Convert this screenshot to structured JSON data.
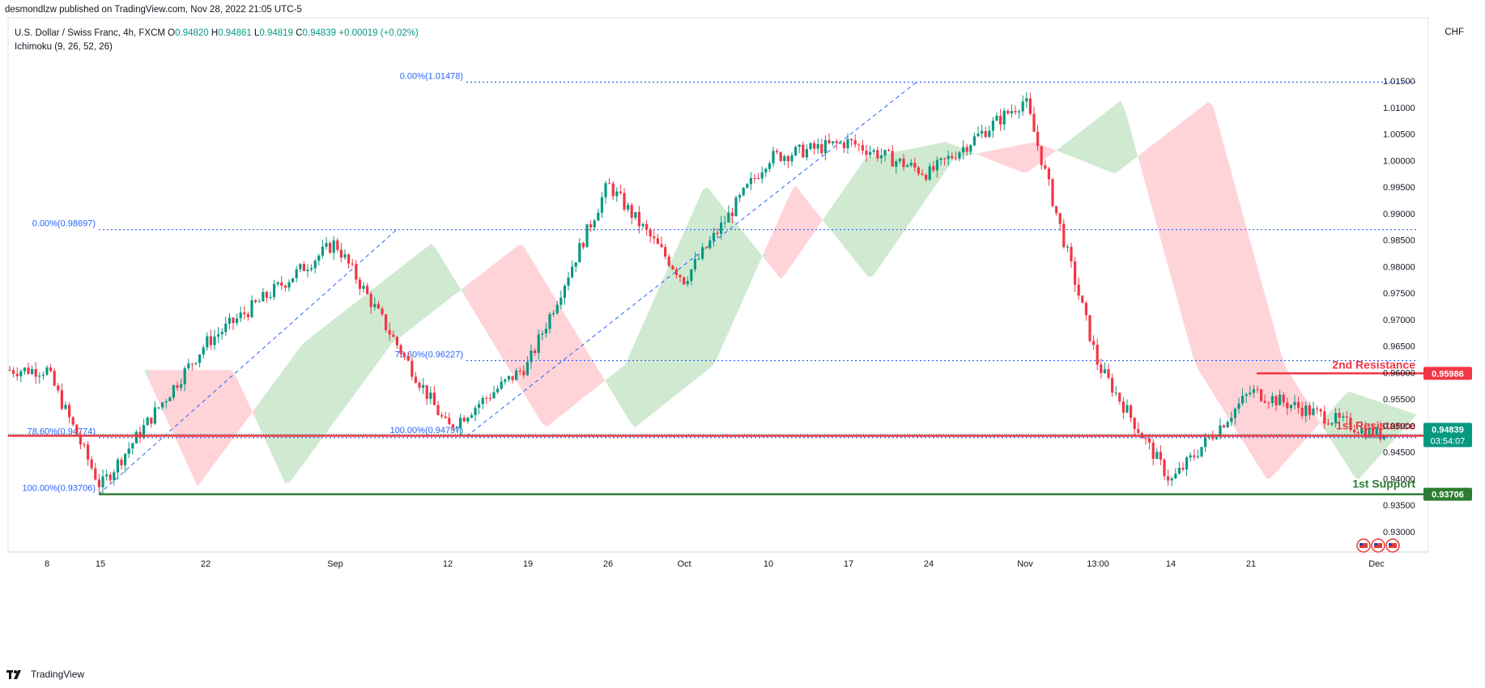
{
  "header": {
    "published": "desmondlzw published on TradingView.com, Nov 28, 2022 21:05 UTC-5",
    "symbol": "U.S. Dollar / Swiss Franc, 4h, FXCM",
    "o_label": "O",
    "o_value": "0.94820",
    "h_label": "H",
    "h_value": "0.94861",
    "l_label": "L",
    "l_value": "0.94819",
    "c_label": "C",
    "c_value": "0.94839",
    "change": "+0.00019 (+0.02%)",
    "indicator": "Ichimoku (9, 26, 52, 26)",
    "currency": "CHF"
  },
  "footer": {
    "brand": "TradingView"
  },
  "colors": {
    "up": "#089981",
    "down": "#f23645",
    "fib": "#2962ff",
    "cloud_green": "#c8e6c9",
    "cloud_red": "#ffcdd2",
    "support": "#2e7d32",
    "resistance": "#f23645",
    "current": "#089981"
  },
  "chart_data": {
    "type": "candlestick",
    "yaxis": {
      "min": 0.928,
      "max": 1.0205,
      "ticks": [
        "0.93000",
        "0.93500",
        "0.94000",
        "0.94500",
        "0.95000",
        "0.95500",
        "0.96000",
        "0.96500",
        "0.97000",
        "0.97500",
        "0.98000",
        "0.98500",
        "0.99000",
        "0.99500",
        "1.00000",
        "1.00500",
        "1.01000",
        "1.01500"
      ]
    },
    "xaxis": {
      "labels": [
        "8",
        "15",
        "22",
        "Sep",
        "12",
        "19",
        "26",
        "Oct",
        "10",
        "17",
        "24",
        "Nov",
        "13:00",
        "14",
        "21",
        "Dec"
      ]
    },
    "price_path": [
      [
        "8",
        0.9605
      ],
      [
        "15",
        0.9385
      ],
      [
        "22",
        0.9655
      ],
      [
        "Sep",
        0.9845
      ],
      [
        "12",
        0.9495
      ],
      [
        "19",
        0.9615
      ],
      [
        "26",
        0.9955
      ],
      [
        "Oct",
        0.9775
      ],
      [
        "10",
        1.0005
      ],
      [
        "17",
        1.0035
      ],
      [
        "24",
        0.9975
      ],
      [
        "Nov",
        1.0115
      ],
      [
        "13:00",
        0.9615
      ],
      [
        "14",
        0.9395
      ],
      [
        "21",
        0.9565
      ],
      [
        "Dec",
        0.9484
      ]
    ],
    "fib_levels": [
      {
        "label": "0.00%(1.01478)",
        "value": 1.01478
      },
      {
        "label": "0.00%(0.98697)",
        "value": 0.98697
      },
      {
        "label": "78.60%(0.96227)",
        "value": 0.96227
      },
      {
        "label": "100.00%(0.94797)",
        "value": 0.94797
      },
      {
        "label": "78.60%(0.94774)",
        "value": 0.94774
      },
      {
        "label": "100.00%(0.93706)",
        "value": 0.93706
      }
    ],
    "levels": [
      {
        "name": "2nd Resistance",
        "value": 0.95986,
        "label": "0.95986"
      },
      {
        "name": "1st Resistance",
        "value": 0.9481,
        "label": "0.94810"
      },
      {
        "name": "1st Support",
        "value": 0.93706,
        "label": "0.93706"
      }
    ],
    "current": {
      "value": 0.94839,
      "label": "0.94839",
      "countdown": "03:54:07"
    }
  }
}
